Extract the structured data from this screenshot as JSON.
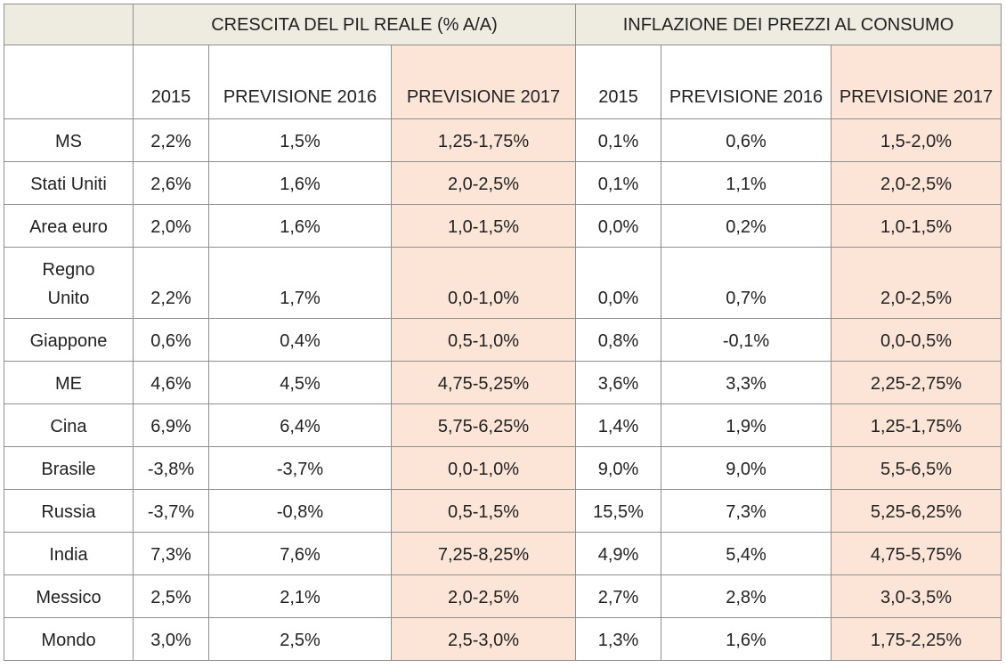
{
  "header": {
    "group1": "CRESCITA DEL PIL REALE (% A/A)",
    "group2": "INFLAZIONE DEI PREZZI AL CONSUMO",
    "sub": [
      "2015",
      "PREVISIONE 2016",
      "PREVISIONE 2017",
      "2015",
      "PREVISIONE 2016",
      "PREVISIONE 2017"
    ]
  },
  "colors": {
    "header_bg": "#eeece1",
    "highlight_bg": "#fce4d6",
    "border": "#8f8f8f"
  },
  "rows": [
    {
      "country": "MS",
      "values": [
        "2,2%",
        "1,5%",
        "1,25-1,75%",
        "0,1%",
        "0,6%",
        "1,5-2,0%"
      ]
    },
    {
      "country": "Stati Uniti",
      "values": [
        "2,6%",
        "1,6%",
        "2,0-2,5%",
        "0,1%",
        "1,1%",
        "2,0-2,5%"
      ]
    },
    {
      "country": "Area euro",
      "values": [
        "2,0%",
        "1,6%",
        "1,0-1,5%",
        "0,0%",
        "0,2%",
        "1,0-1,5%"
      ]
    },
    {
      "country": "Regno Unito",
      "values": [
        "2,2%",
        "1,7%",
        "0,0-1,0%",
        "0,0%",
        "0,7%",
        "2,0-2,5%"
      ]
    },
    {
      "country": "Giappone",
      "values": [
        "0,6%",
        "0,4%",
        "0,5-1,0%",
        "0,8%",
        "-0,1%",
        "0,0-0,5%"
      ]
    },
    {
      "country": "ME",
      "values": [
        "4,6%",
        "4,5%",
        "4,75-5,25%",
        "3,6%",
        "3,3%",
        "2,25-2,75%"
      ]
    },
    {
      "country": "Cina",
      "values": [
        "6,9%",
        "6,4%",
        "5,75-6,25%",
        "1,4%",
        "1,9%",
        "1,25-1,75%"
      ]
    },
    {
      "country": "Brasile",
      "values": [
        "-3,8%",
        "-3,7%",
        "0,0-1,0%",
        "9,0%",
        "9,0%",
        "5,5-6,5%"
      ]
    },
    {
      "country": "Russia",
      "values": [
        "-3,7%",
        "-0,8%",
        "0,5-1,5%",
        "15,5%",
        "7,3%",
        "5,25-6,25%"
      ]
    },
    {
      "country": "India",
      "values": [
        "7,3%",
        "7,6%",
        "7,25-8,25%",
        "4,9%",
        "5,4%",
        "4,75-5,75%"
      ]
    },
    {
      "country": "Messico",
      "values": [
        "2,5%",
        "2,1%",
        "2,0-2,5%",
        "2,7%",
        "2,8%",
        "3,0-3,5%"
      ]
    },
    {
      "country": "Mondo",
      "values": [
        "3,0%",
        "2,5%",
        "2,5-3,0%",
        "1,3%",
        "1,6%",
        "1,75-2,25%"
      ]
    }
  ]
}
